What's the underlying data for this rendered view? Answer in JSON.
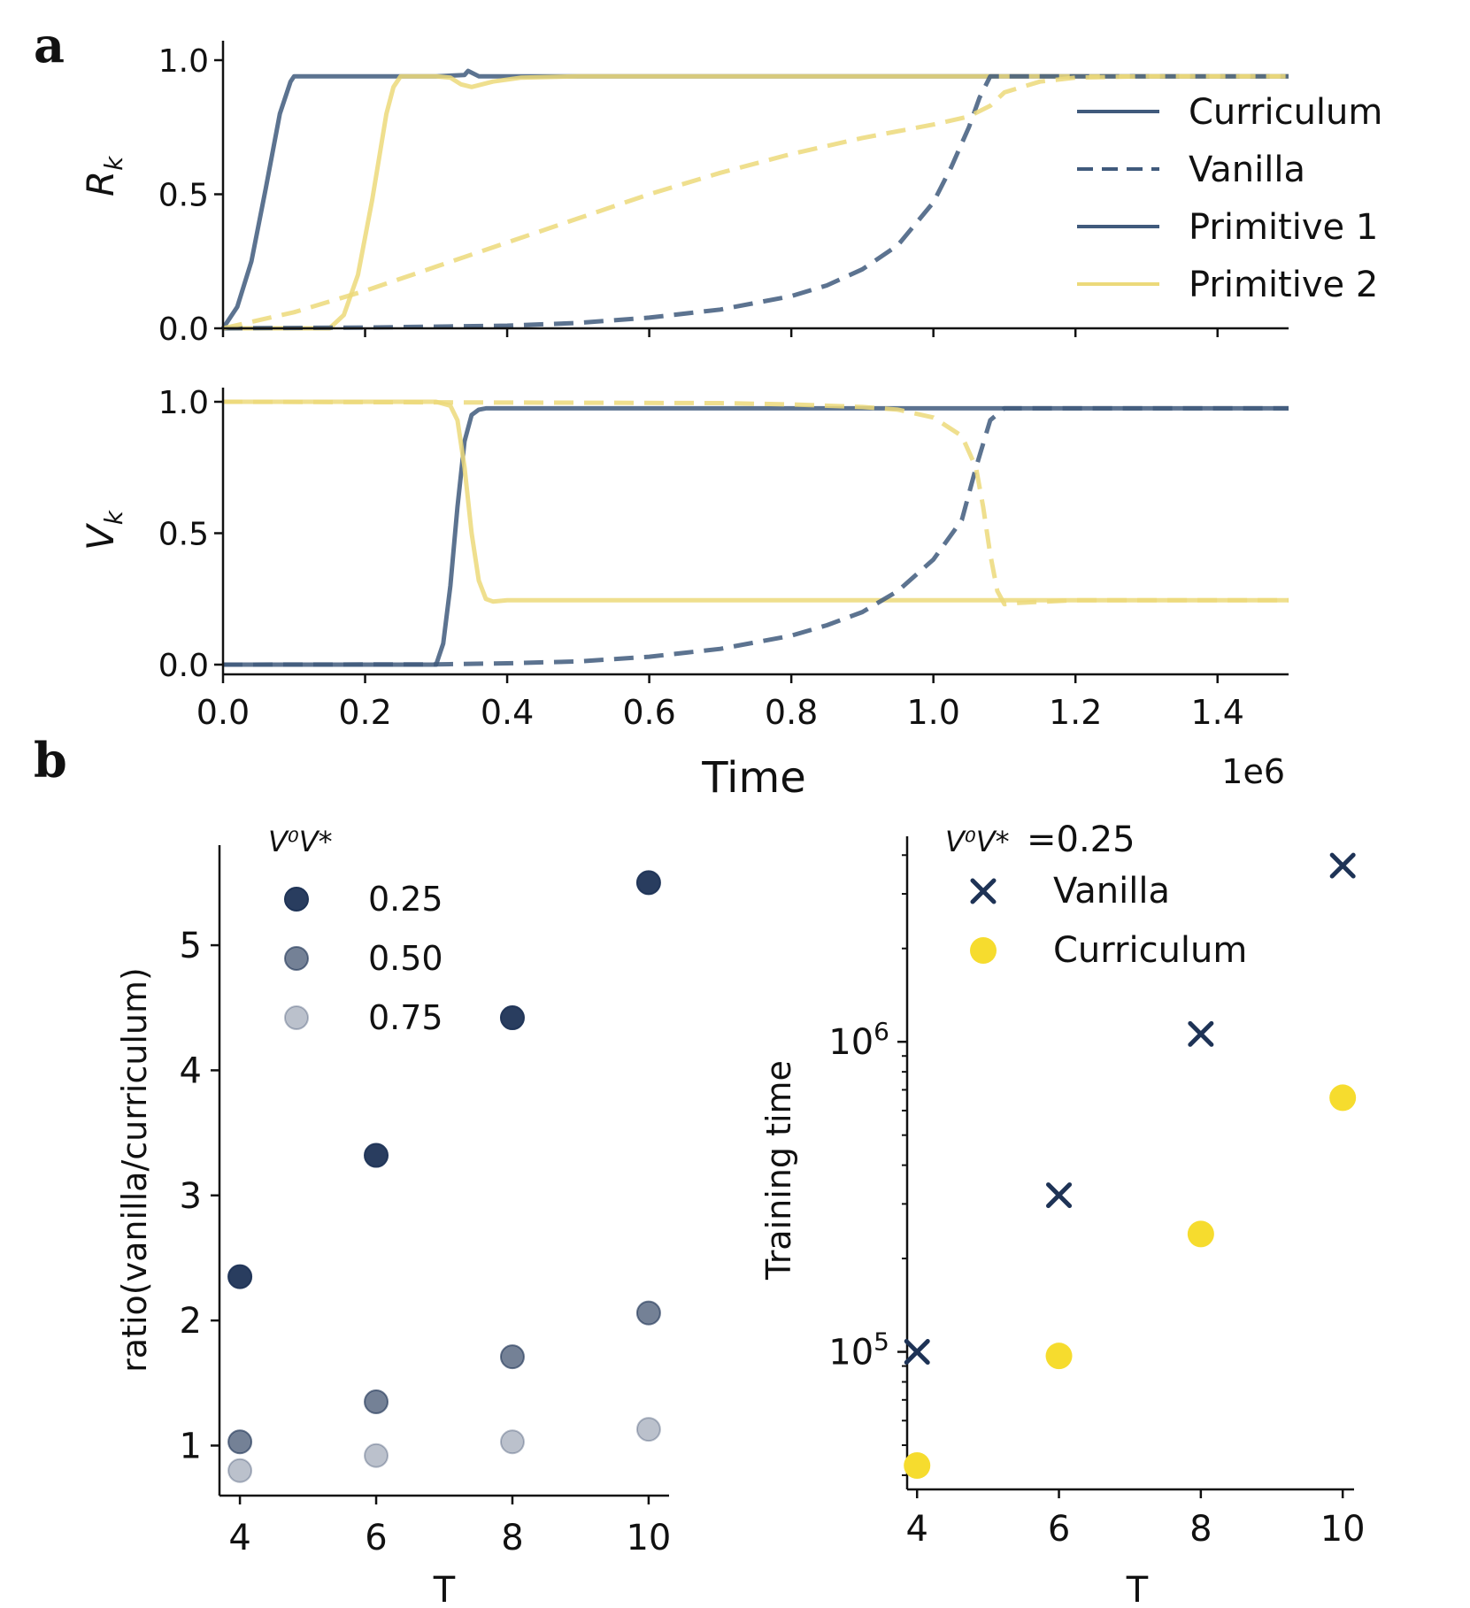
{
  "colors": {
    "navy": "#405a7c",
    "navy_dark": "#1e3356",
    "yellow": "#ecd97a",
    "yellow_bright": "#f6dc2e",
    "axis": "#111111"
  },
  "panels": {
    "a": "a",
    "b": "b"
  },
  "chart_data": [
    {
      "id": "top-rk",
      "type": "line",
      "ylabel_sym": "R",
      "ylabel_sub": "k",
      "xlim": [
        0,
        1500000
      ],
      "ylim": [
        0,
        1
      ],
      "yticks": [
        0,
        0.5,
        1
      ],
      "ytick_labels": [
        "0.0",
        "0.5",
        "1.0"
      ],
      "xticks": [
        0,
        200000,
        400000,
        600000,
        800000,
        1000000,
        1200000,
        1400000
      ],
      "legend": [
        "Curriculum",
        "Vanilla",
        "Primitive 1",
        "Primitive 2"
      ],
      "series": [
        {
          "name": "Curriculum - Primitive 1",
          "color": "navy",
          "dash": false,
          "x": [
            0,
            20000,
            40000,
            60000,
            80000,
            95000,
            100000,
            300000,
            340000,
            345000,
            360000,
            500000,
            1500000
          ],
          "y": [
            0,
            0.08,
            0.25,
            0.52,
            0.8,
            0.92,
            0.94,
            0.94,
            0.945,
            0.96,
            0.94,
            0.94,
            0.94
          ]
        },
        {
          "name": "Curriculum - Primitive 2",
          "color": "yellow",
          "dash": false,
          "x": [
            0,
            150000,
            170000,
            190000,
            210000,
            230000,
            240000,
            250000,
            300000,
            320000,
            335000,
            350000,
            380000,
            420000,
            500000,
            1500000
          ],
          "y": [
            0,
            0,
            0.05,
            0.2,
            0.48,
            0.8,
            0.9,
            0.94,
            0.94,
            0.935,
            0.91,
            0.9,
            0.92,
            0.935,
            0.94,
            0.94
          ]
        },
        {
          "name": "Vanilla - Primitive 1",
          "color": "navy",
          "dash": true,
          "x": [
            0,
            200000,
            400000,
            500000,
            600000,
            700000,
            800000,
            850000,
            900000,
            950000,
            1000000,
            1025000,
            1050000,
            1065000,
            1080000,
            1100000,
            1500000
          ],
          "y": [
            0,
            0.003,
            0.01,
            0.02,
            0.04,
            0.07,
            0.12,
            0.16,
            0.22,
            0.31,
            0.47,
            0.6,
            0.75,
            0.86,
            0.94,
            0.94,
            0.94
          ]
        },
        {
          "name": "Vanilla - Primitive 2",
          "color": "yellow",
          "dash": true,
          "x": [
            0,
            100000,
            200000,
            300000,
            400000,
            500000,
            600000,
            700000,
            800000,
            900000,
            1000000,
            1050000,
            1080000,
            1100000,
            1150000,
            1200000,
            1300000,
            1500000
          ],
          "y": [
            0,
            0.06,
            0.14,
            0.23,
            0.32,
            0.41,
            0.5,
            0.58,
            0.65,
            0.71,
            0.76,
            0.79,
            0.83,
            0.88,
            0.92,
            0.935,
            0.94,
            0.94
          ]
        }
      ]
    },
    {
      "id": "top-vk",
      "type": "line",
      "ylabel_sym": "V",
      "ylabel_sub": "k",
      "xlim": [
        0,
        1500000
      ],
      "ylim": [
        0,
        1
      ],
      "yticks": [
        0,
        0.5,
        1
      ],
      "ytick_labels": [
        "0.0",
        "0.5",
        "1.0"
      ],
      "xticks": [
        0,
        200000,
        400000,
        600000,
        800000,
        1000000,
        1200000,
        1400000
      ],
      "xtick_labels": [
        "0.0",
        "0.2",
        "0.4",
        "0.6",
        "0.8",
        "1.0",
        "1.2",
        "1.4"
      ],
      "xlabel": "Time",
      "offset_text": "1e6",
      "series": [
        {
          "name": "Curriculum - Primitive 1",
          "color": "navy",
          "dash": false,
          "x": [
            0,
            300000,
            310000,
            320000,
            330000,
            340000,
            350000,
            360000,
            370000,
            1500000
          ],
          "y": [
            0,
            0,
            0.08,
            0.3,
            0.6,
            0.85,
            0.95,
            0.97,
            0.975,
            0.975
          ]
        },
        {
          "name": "Curriculum - Primitive 2",
          "color": "yellow",
          "dash": false,
          "x": [
            0,
            300000,
            320000,
            330000,
            340000,
            350000,
            360000,
            370000,
            380000,
            400000,
            1500000
          ],
          "y": [
            1,
            1,
            0.985,
            0.93,
            0.75,
            0.5,
            0.32,
            0.25,
            0.24,
            0.245,
            0.245
          ]
        },
        {
          "name": "Vanilla - Primitive 1",
          "color": "navy",
          "dash": true,
          "x": [
            0,
            300000,
            400000,
            500000,
            600000,
            700000,
            800000,
            850000,
            900000,
            950000,
            1000000,
            1040000,
            1060000,
            1080000,
            1100000,
            1500000
          ],
          "y": [
            0,
            0.001,
            0.005,
            0.012,
            0.03,
            0.06,
            0.11,
            0.15,
            0.2,
            0.28,
            0.4,
            0.55,
            0.75,
            0.93,
            0.975,
            0.975
          ]
        },
        {
          "name": "Vanilla - Primitive 2",
          "color": "yellow",
          "dash": true,
          "x": [
            0,
            700000,
            800000,
            900000,
            950000,
            1000000,
            1040000,
            1060000,
            1070000,
            1080000,
            1090000,
            1100000,
            1120000,
            1200000,
            1500000
          ],
          "y": [
            1,
            0.995,
            0.99,
            0.98,
            0.97,
            0.94,
            0.87,
            0.75,
            0.6,
            0.42,
            0.28,
            0.23,
            0.235,
            0.245,
            0.245
          ]
        }
      ]
    },
    {
      "id": "b-left",
      "type": "scatter",
      "xlabel": "T",
      "ylabel": "ratio(vanilla/curriculum)",
      "xlim": [
        3.7,
        10.3
      ],
      "ylim": [
        0.6,
        5.8
      ],
      "xticks": [
        4,
        6,
        8,
        10
      ],
      "yticks": [
        1,
        2,
        3,
        4,
        5
      ],
      "legend_title": "V⁰V*",
      "series": [
        {
          "name": "0.25",
          "opacity": 0.95,
          "x": [
            4,
            6,
            8,
            10
          ],
          "y": [
            2.35,
            3.32,
            4.42,
            5.5
          ]
        },
        {
          "name": "0.50",
          "opacity": 0.62,
          "x": [
            4,
            6,
            8,
            10
          ],
          "y": [
            1.03,
            1.35,
            1.71,
            2.06
          ]
        },
        {
          "name": "0.75",
          "opacity": 0.3,
          "x": [
            4,
            6,
            8,
            10
          ],
          "y": [
            0.8,
            0.92,
            1.03,
            1.13
          ]
        }
      ]
    },
    {
      "id": "b-right",
      "type": "scatter",
      "xlabel": "T",
      "ylabel": "Training time",
      "yscale": "log",
      "xlim": [
        3.86,
        10.16
      ],
      "ylim": [
        36000,
        4600000
      ],
      "xticks": [
        4,
        6,
        8,
        10
      ],
      "yticks": [
        100000,
        1000000
      ],
      "ytick_base": "10",
      "ytick_exps": [
        "5",
        "6"
      ],
      "legend_title": "V⁰V*",
      "legend_title_value": "=0.25",
      "series": [
        {
          "name": "Vanilla",
          "marker": "x",
          "x": [
            4,
            6,
            8,
            10
          ],
          "y": [
            100000,
            320000,
            1060000,
            3700000
          ]
        },
        {
          "name": "Curriculum",
          "marker": "o",
          "x": [
            4,
            6,
            8,
            10
          ],
          "y": [
            43000,
            97000,
            240000,
            660000
          ]
        }
      ]
    }
  ]
}
